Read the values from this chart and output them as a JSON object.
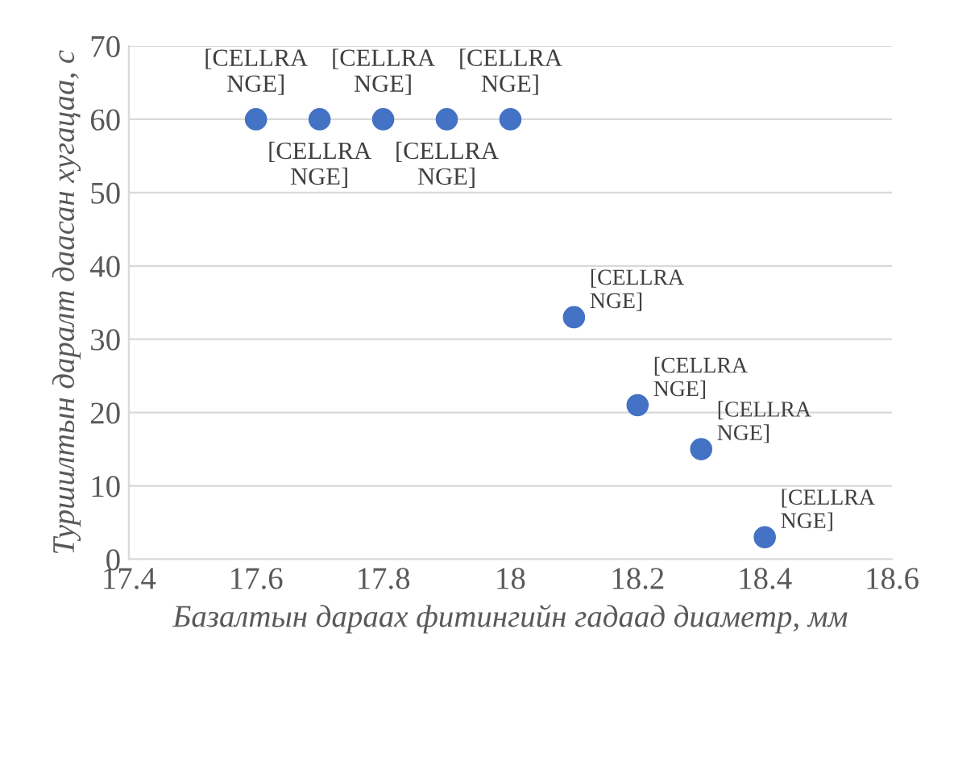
{
  "chart_data": {
    "type": "scatter",
    "xlabel": "Базалтын дараах фитингийн гадаад диаметр, мм",
    "ylabel": "Туршилтын даралт даасан хугацаа, с",
    "x": [
      17.6,
      17.7,
      17.8,
      17.9,
      18.0,
      18.1,
      18.2,
      18.3,
      18.4
    ],
    "series": [
      {
        "color": "#4472c4",
        "values": [
          60,
          60,
          60,
          60,
          60,
          33,
          21,
          15,
          3
        ],
        "value_labels": [
          "[CELLRA\nNGE]",
          "[CELLRA\nNGE]",
          "[CELLRA\nNGE]",
          "[CELLRA\nNGE]",
          "[CELLRA\nNGE]",
          "[CELLRA\nNGE]",
          "[CELLRA\nNGE]",
          "[CELLRA\nNGE]",
          "[CELLRA\nNGE]"
        ]
      }
    ],
    "xlim": [
      17.4,
      18.6
    ],
    "xticks": [
      17.4,
      17.6,
      17.8,
      18,
      18.2,
      18.4,
      18.6
    ],
    "ylim": [
      0,
      70
    ],
    "yticks": [
      0,
      10,
      20,
      30,
      40,
      50,
      60,
      70
    ],
    "grid": "y",
    "marker": "circle",
    "legend": false
  }
}
